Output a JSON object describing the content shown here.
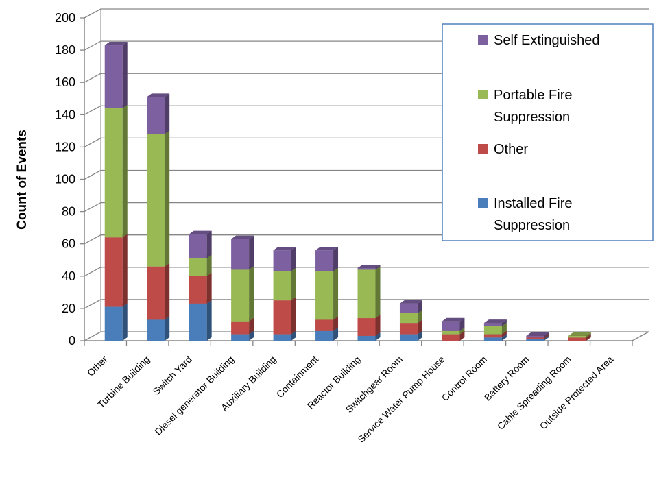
{
  "chart_data": {
    "type": "bar",
    "stacked": true,
    "three_d": true,
    "ylabel": "Count of Events",
    "xlabel": "",
    "ylim": [
      0,
      200
    ],
    "yticks": [
      0,
      20,
      40,
      60,
      80,
      100,
      120,
      140,
      160,
      180,
      200
    ],
    "grid": true,
    "legend_position": "top-right",
    "categories": [
      "Other",
      "Turbine Building",
      "Switch Yard",
      "Diesel generator Building",
      "Auxiliary Building",
      "Containment",
      "Reactor Building",
      "Switchgear Room",
      "Service Water Pump House",
      "Control Room",
      "Battery Room",
      "Cable Spreading Room",
      "Outside Protected Area"
    ],
    "series": [
      {
        "name": "Installed Fire Suppression",
        "color": "#4a7ebb",
        "values": [
          21,
          13,
          23,
          4,
          4,
          6,
          3,
          4,
          0,
          2,
          1,
          0,
          0
        ]
      },
      {
        "name": "Other",
        "color": "#be4b48",
        "values": [
          43,
          33,
          17,
          8,
          21,
          7,
          11,
          7,
          4,
          2,
          1,
          2,
          0
        ]
      },
      {
        "name": "Portable Fire Suppression",
        "color": "#98b954",
        "values": [
          80,
          82,
          11,
          32,
          18,
          30,
          30,
          6,
          2,
          5,
          0,
          1,
          0
        ]
      },
      {
        "name": "Self Extinguished",
        "color": "#7d60a0",
        "values": [
          39,
          23,
          15,
          19,
          13,
          13,
          1,
          6,
          6,
          2,
          1,
          0,
          0
        ]
      }
    ],
    "legend_order": [
      "Self Extinguished",
      "Portable Fire Suppression",
      "Other",
      "Installed Fire Suppression"
    ],
    "legend_lines": {
      "Self Extinguished": [
        "Self Extinguished"
      ],
      "Portable Fire Suppression": [
        "Portable Fire",
        "Suppression"
      ],
      "Other": [
        "Other"
      ],
      "Installed Fire Suppression": [
        "Installed Fire",
        "Suppression"
      ]
    }
  }
}
